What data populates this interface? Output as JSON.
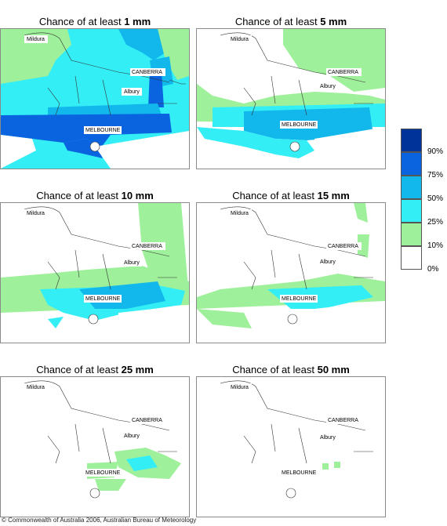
{
  "panels": [
    {
      "title_prefix": "Chance of at least ",
      "amount": "1 mm",
      "labels": {
        "mildura": "Mildura",
        "canberra": "CANBERRA",
        "albury": "Albury",
        "melbourne": "MELBOURNE"
      }
    },
    {
      "title_prefix": "Chance of at least ",
      "amount": "5 mm",
      "labels": {
        "mildura": "Mildura",
        "canberra": "CANBERRA",
        "albury": "Albury",
        "melbourne": "MELBOURNE"
      }
    },
    {
      "title_prefix": "Chance of at least ",
      "amount": "10 mm",
      "labels": {
        "mildura": "Mildura",
        "canberra": "CANBERRA",
        "albury": "Albury",
        "melbourne": "MELBOURNE"
      }
    },
    {
      "title_prefix": "Chance of at least ",
      "amount": "15 mm",
      "labels": {
        "mildura": "Mildura",
        "canberra": "CANBERRA",
        "albury": "Albury",
        "melbourne": "MELBOURNE"
      }
    },
    {
      "title_prefix": "Chance of at least ",
      "amount": "25 mm",
      "labels": {
        "mildura": "Mildura",
        "canberra": "CANBERRA",
        "albury": "Albury",
        "melbourne": "MELBOURNE"
      }
    },
    {
      "title_prefix": "Chance of at least ",
      "amount": "50 mm",
      "labels": {
        "mildura": "Mildura",
        "canberra": "CANBERRA",
        "albury": "Albury",
        "melbourne": "MELBOURNE"
      }
    }
  ],
  "legend": {
    "labels": [
      "90%",
      "75%",
      "50%",
      "25%",
      "10%",
      "0%"
    ],
    "colors": [
      "#003399",
      "#0a64e0",
      "#12b8ec",
      "#33eef5",
      "#9ff09a",
      "#ffffff"
    ]
  },
  "copyright": "© Commonwealth of Australia 2006, Australian Bureau of Meteorology"
}
